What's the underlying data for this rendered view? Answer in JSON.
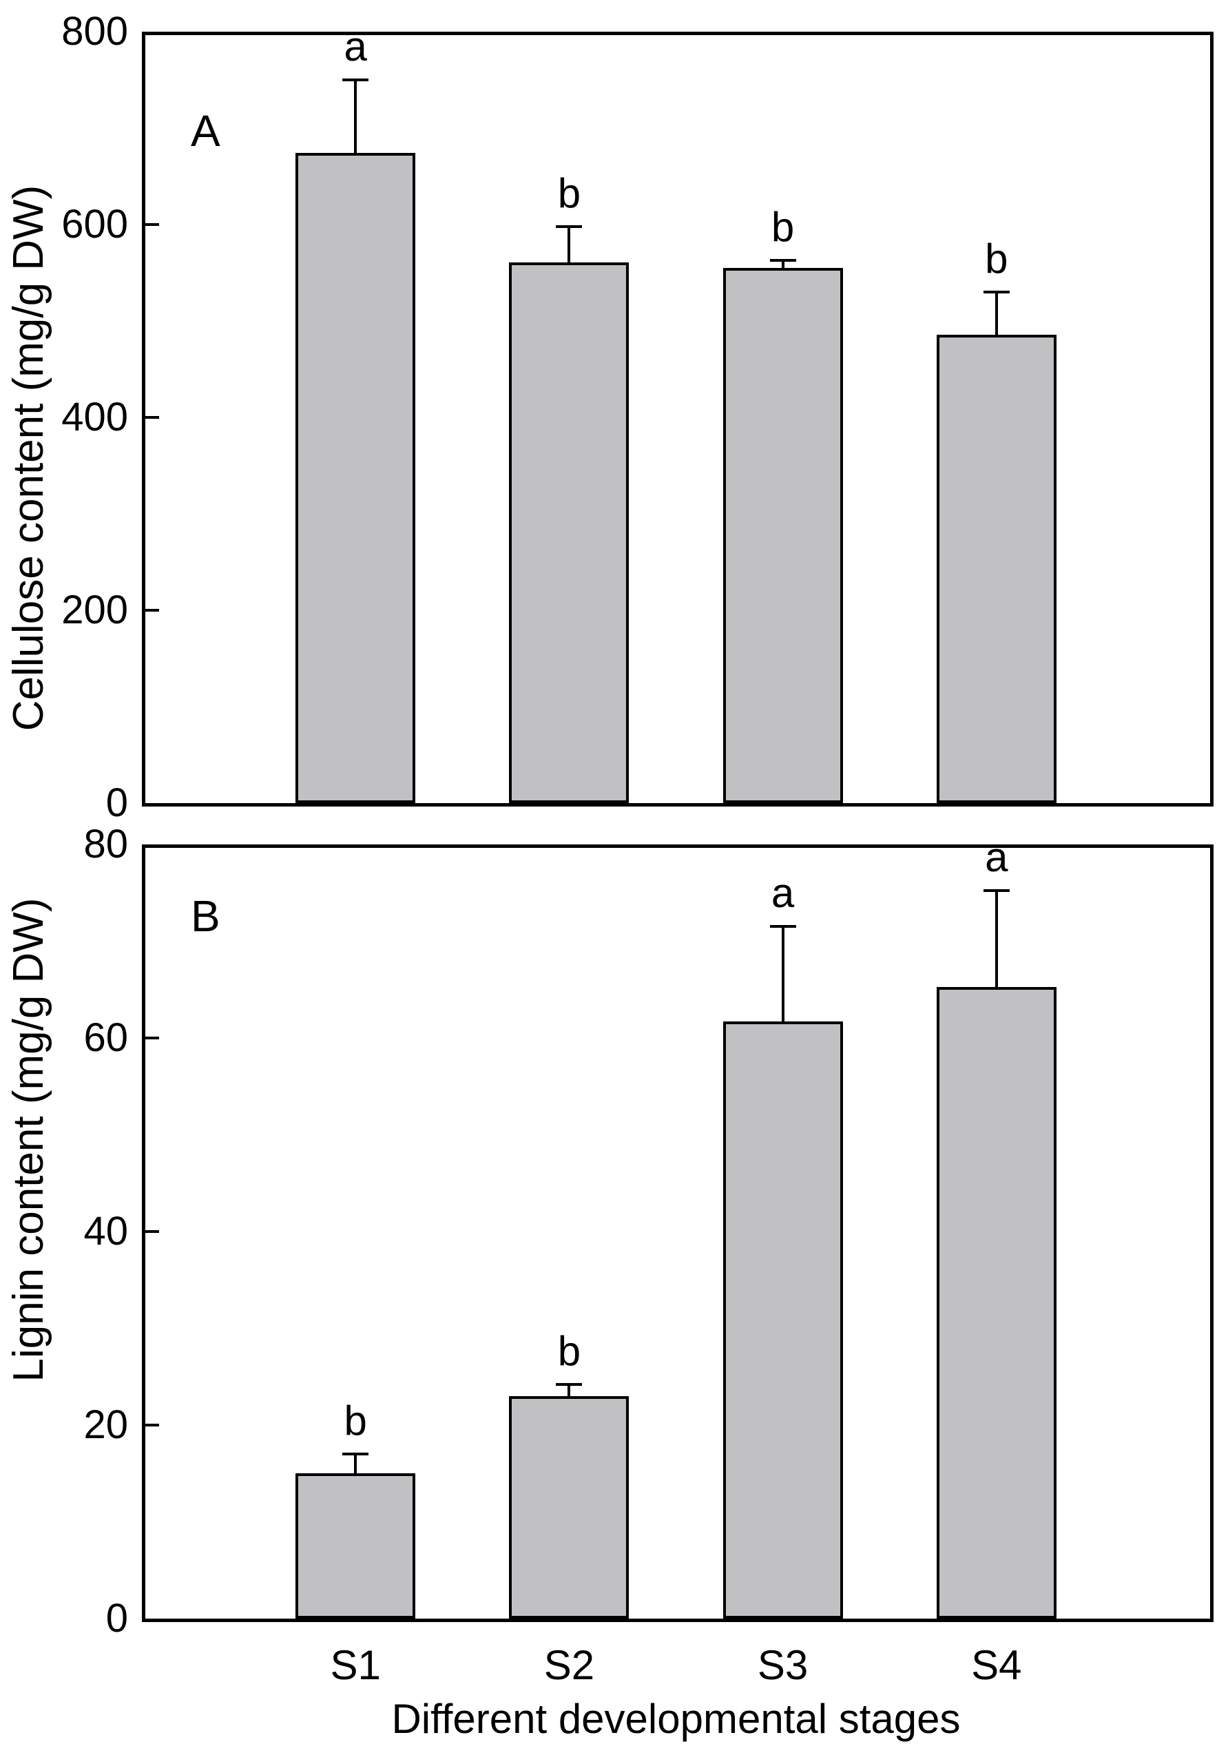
{
  "figure": {
    "xlabel": "Different developmental stages",
    "categories": [
      "S1",
      "S2",
      "S3",
      "S4"
    ],
    "colors": {
      "bar_fill": "#c1c1c3",
      "line": "#000000",
      "background": "#ffffff"
    }
  },
  "chart_data": [
    {
      "type": "bar",
      "panel_label": "A",
      "title": "",
      "xlabel": "",
      "ylabel": "Cellulose content (mg/g DW)",
      "categories": [
        "S1",
        "S2",
        "S3",
        "S4"
      ],
      "values": [
        674,
        561,
        555,
        486
      ],
      "errors_plus": [
        76,
        37,
        8,
        44
      ],
      "sig_letters": [
        "a",
        "b",
        "b",
        "b"
      ],
      "ylim": [
        0,
        800
      ],
      "yticks": [
        0,
        200,
        400,
        600,
        800
      ],
      "grid": false,
      "legend_position": "none"
    },
    {
      "type": "bar",
      "panel_label": "B",
      "title": "",
      "xlabel": "Different developmental stages",
      "ylabel": "Lignin content (mg/g DW)",
      "categories": [
        "S1",
        "S2",
        "S3",
        "S4"
      ],
      "values": [
        15.0,
        23.0,
        61.7,
        65.3
      ],
      "errors_plus": [
        2.0,
        1.2,
        9.8,
        9.9
      ],
      "sig_letters": [
        "b",
        "b",
        "a",
        "a"
      ],
      "ylim": [
        0,
        80
      ],
      "yticks": [
        0,
        20,
        40,
        60,
        80
      ],
      "grid": false,
      "legend_position": "none"
    }
  ]
}
